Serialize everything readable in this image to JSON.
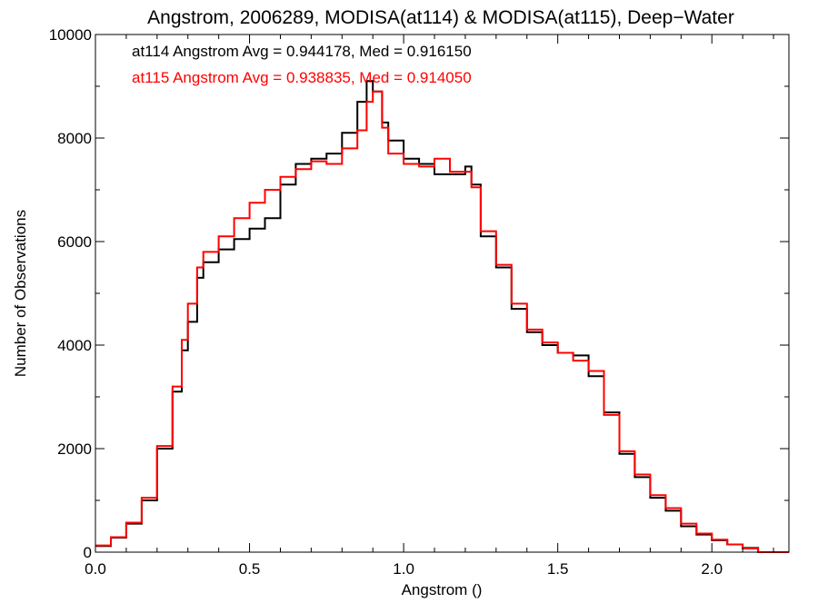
{
  "chart_data": {
    "type": "line",
    "title": "Angstrom, 2006289, MODISA(at114) & MODISA(at115), Deep−Water",
    "xlabel": "Angstrom ()",
    "ylabel": "Number of Observations",
    "xlim": [
      0.0,
      2.25
    ],
    "ylim": [
      0,
      10000
    ],
    "x_ticks": [
      "0.0",
      "0.5",
      "1.0",
      "1.5",
      "2.0"
    ],
    "y_ticks": [
      "0",
      "2000",
      "4000",
      "6000",
      "8000",
      "10000"
    ],
    "grid": false,
    "legend_position": "top-left",
    "series": [
      {
        "name": "at114",
        "color": "#000000",
        "label": "at114 Angstrom Avg = 0.944178, Med = 0.916150",
        "points": [
          [
            0.0,
            120
          ],
          [
            0.05,
            280
          ],
          [
            0.1,
            550
          ],
          [
            0.15,
            1000
          ],
          [
            0.2,
            2000
          ],
          [
            0.25,
            3100
          ],
          [
            0.28,
            3900
          ],
          [
            0.3,
            4450
          ],
          [
            0.33,
            5300
          ],
          [
            0.35,
            5600
          ],
          [
            0.4,
            5850
          ],
          [
            0.45,
            6050
          ],
          [
            0.5,
            6250
          ],
          [
            0.55,
            6450
          ],
          [
            0.6,
            7100
          ],
          [
            0.65,
            7500
          ],
          [
            0.7,
            7600
          ],
          [
            0.75,
            7700
          ],
          [
            0.8,
            8100
          ],
          [
            0.85,
            8700
          ],
          [
            0.88,
            9100
          ],
          [
            0.9,
            8900
          ],
          [
            0.93,
            8300
          ],
          [
            0.95,
            7950
          ],
          [
            1.0,
            7600
          ],
          [
            1.05,
            7500
          ],
          [
            1.1,
            7300
          ],
          [
            1.15,
            7300
          ],
          [
            1.2,
            7450
          ],
          [
            1.22,
            7100
          ],
          [
            1.25,
            6100
          ],
          [
            1.3,
            5500
          ],
          [
            1.35,
            4700
          ],
          [
            1.4,
            4250
          ],
          [
            1.45,
            4000
          ],
          [
            1.5,
            3850
          ],
          [
            1.55,
            3800
          ],
          [
            1.6,
            3400
          ],
          [
            1.65,
            2700
          ],
          [
            1.7,
            1900
          ],
          [
            1.75,
            1450
          ],
          [
            1.8,
            1050
          ],
          [
            1.85,
            800
          ],
          [
            1.9,
            500
          ],
          [
            1.95,
            340
          ],
          [
            2.0,
            230
          ],
          [
            2.05,
            150
          ],
          [
            2.1,
            80
          ],
          [
            2.15,
            0
          ],
          [
            2.25,
            0
          ]
        ]
      },
      {
        "name": "at115",
        "color": "#ff0000",
        "label": "at115 Angstrom Avg = 0.938835, Med = 0.914050",
        "points": [
          [
            0.0,
            130
          ],
          [
            0.05,
            290
          ],
          [
            0.1,
            570
          ],
          [
            0.15,
            1050
          ],
          [
            0.2,
            2050
          ],
          [
            0.25,
            3200
          ],
          [
            0.28,
            4100
          ],
          [
            0.3,
            4800
          ],
          [
            0.33,
            5500
          ],
          [
            0.35,
            5800
          ],
          [
            0.4,
            6100
          ],
          [
            0.45,
            6450
          ],
          [
            0.5,
            6750
          ],
          [
            0.55,
            7000
          ],
          [
            0.6,
            7250
          ],
          [
            0.65,
            7400
          ],
          [
            0.7,
            7550
          ],
          [
            0.75,
            7500
          ],
          [
            0.8,
            7800
          ],
          [
            0.85,
            8150
          ],
          [
            0.88,
            8700
          ],
          [
            0.9,
            8900
          ],
          [
            0.93,
            8200
          ],
          [
            0.95,
            7700
          ],
          [
            1.0,
            7500
          ],
          [
            1.05,
            7450
          ],
          [
            1.1,
            7600
          ],
          [
            1.15,
            7350
          ],
          [
            1.2,
            7350
          ],
          [
            1.22,
            7050
          ],
          [
            1.25,
            6200
          ],
          [
            1.3,
            5550
          ],
          [
            1.35,
            4800
          ],
          [
            1.4,
            4300
          ],
          [
            1.45,
            4050
          ],
          [
            1.5,
            3850
          ],
          [
            1.55,
            3700
          ],
          [
            1.6,
            3500
          ],
          [
            1.65,
            2650
          ],
          [
            1.7,
            1950
          ],
          [
            1.75,
            1500
          ],
          [
            1.8,
            1100
          ],
          [
            1.85,
            850
          ],
          [
            1.9,
            550
          ],
          [
            1.95,
            360
          ],
          [
            2.0,
            240
          ],
          [
            2.05,
            150
          ],
          [
            2.1,
            70
          ],
          [
            2.15,
            0
          ],
          [
            2.25,
            0
          ]
        ]
      }
    ]
  }
}
